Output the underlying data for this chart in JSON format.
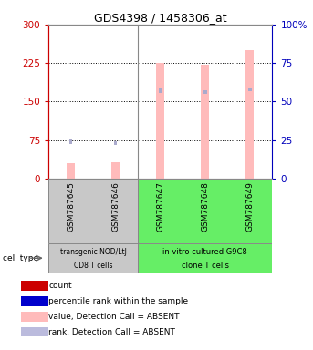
{
  "title": "GDS4398 / 1458306_at",
  "samples": [
    "GSM787645",
    "GSM787646",
    "GSM787647",
    "GSM787648",
    "GSM787649"
  ],
  "count_values": [
    30,
    32,
    225,
    222,
    250
  ],
  "rank_values": [
    24,
    23,
    57,
    56,
    58
  ],
  "ylim_left": [
    0,
    300
  ],
  "ylim_right": [
    0,
    100
  ],
  "yticks_left": [
    0,
    75,
    150,
    225,
    300
  ],
  "yticks_right": [
    0,
    25,
    50,
    75,
    100
  ],
  "grid_values": [
    75,
    150,
    225
  ],
  "group1_label_line1": "transgenic NOD/LtJ",
  "group1_label_line2": "CD8 T cells",
  "group2_label_line1": "in vitro cultured G9C8",
  "group2_label_line2": "clone T cells",
  "cell_type_label": "cell type",
  "legend_items": [
    {
      "label": "count",
      "color": "#cc0000"
    },
    {
      "label": "percentile rank within the sample",
      "color": "#0000cc"
    },
    {
      "label": "value, Detection Call = ABSENT",
      "color": "#ffbbbb"
    },
    {
      "label": "rank, Detection Call = ABSENT",
      "color": "#bbbbdd"
    }
  ],
  "absent_bar_color": "#ffbbbb",
  "absent_rank_color": "#aaaacc",
  "group1_bg": "#c8c8c8",
  "group2_bg": "#66ee66",
  "left_axis_color": "#cc0000",
  "right_axis_color": "#0000bb",
  "plot_border_color": "#888888"
}
